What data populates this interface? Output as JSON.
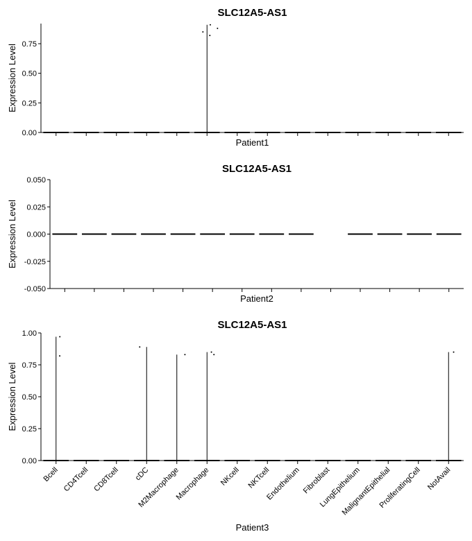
{
  "chart_data": [
    {
      "type": "violin",
      "title": "SLC12A5-AS1",
      "xlabel": "Patient1",
      "ylabel": "Expression Level",
      "ylim": [
        0,
        0.92
      ],
      "yticks": [
        0.0,
        0.25,
        0.5,
        0.75
      ],
      "ytick_labels": [
        "0.00",
        "0.25",
        "0.50",
        "0.75"
      ],
      "x_tick_labels_shown": false,
      "categories": [
        "Bcell",
        "CD4Tcell",
        "CD8Tcell",
        "cDC",
        "M2Macrophage",
        "Macrophage",
        "NKcell",
        "NKTcell",
        "Endothelium",
        "Fibroblast",
        "LungEpithelium",
        "MalignantEpithelial",
        "ProliferatingCell",
        "NotAvail"
      ],
      "present": [
        true,
        true,
        true,
        true,
        true,
        true,
        true,
        true,
        true,
        true,
        true,
        true,
        true,
        true
      ],
      "outliers": [
        [],
        [],
        [],
        [],
        [],
        [
          0.91,
          0.85,
          0.82,
          0.88
        ],
        [],
        [],
        [],
        [],
        [],
        [],
        [],
        []
      ],
      "spike_max": [
        null,
        null,
        null,
        null,
        null,
        0.91,
        null,
        null,
        null,
        null,
        null,
        null,
        null,
        null
      ]
    },
    {
      "type": "violin",
      "title": "SLC12A5-AS1",
      "xlabel": "Patient2",
      "ylabel": "Expression Level",
      "ylim": [
        -0.05,
        0.05
      ],
      "yticks": [
        -0.05,
        -0.025,
        0.0,
        0.025,
        0.05
      ],
      "ytick_labels": [
        "-0.050",
        "-0.025",
        "0.000",
        "0.025",
        "0.050"
      ],
      "x_tick_labels_shown": false,
      "categories": [
        "Bcell",
        "CD4Tcell",
        "CD8Tcell",
        "cDC",
        "M2Macrophage",
        "Macrophage",
        "NKcell",
        "NKTcell",
        "Endothelium",
        "Fibroblast",
        "LungEpithelium",
        "MalignantEpithelial",
        "ProliferatingCell",
        "NotAvail"
      ],
      "present": [
        true,
        true,
        true,
        true,
        true,
        true,
        true,
        true,
        true,
        false,
        true,
        true,
        true,
        true
      ],
      "outliers": [
        [],
        [],
        [],
        [],
        [],
        [],
        [],
        [],
        [],
        [],
        [],
        [],
        [],
        []
      ],
      "spike_max": [
        null,
        null,
        null,
        null,
        null,
        null,
        null,
        null,
        null,
        null,
        null,
        null,
        null,
        null
      ]
    },
    {
      "type": "violin",
      "title": "SLC12A5-AS1",
      "xlabel": "Patient3",
      "ylabel": "Expression Level",
      "ylim": [
        0,
        1.0
      ],
      "yticks": [
        0.0,
        0.25,
        0.5,
        0.75,
        1.0
      ],
      "ytick_labels": [
        "0.00",
        "0.25",
        "0.50",
        "0.75",
        "1.00"
      ],
      "x_tick_labels_shown": true,
      "categories": [
        "Bcell",
        "CD4Tcell",
        "CD8Tcell",
        "cDC",
        "M2Macrophage",
        "Macrophage",
        "NKcell",
        "NKTcell",
        "Endothelium",
        "Fibroblast",
        "LungEpithelium",
        "MalignantEpithelial",
        "ProliferatingCell",
        "NotAvail"
      ],
      "present": [
        true,
        true,
        true,
        true,
        true,
        true,
        true,
        true,
        true,
        true,
        true,
        true,
        true,
        true
      ],
      "outliers": [
        [
          0.97,
          0.82
        ],
        [],
        [],
        [
          0.89
        ],
        [
          0.83
        ],
        [
          0.85,
          0.83
        ],
        [],
        [],
        [],
        [],
        [],
        [],
        [],
        [
          0.85
        ]
      ],
      "spike_max": [
        0.97,
        null,
        null,
        0.89,
        0.83,
        0.85,
        null,
        null,
        null,
        null,
        null,
        null,
        null,
        0.85
      ]
    }
  ]
}
